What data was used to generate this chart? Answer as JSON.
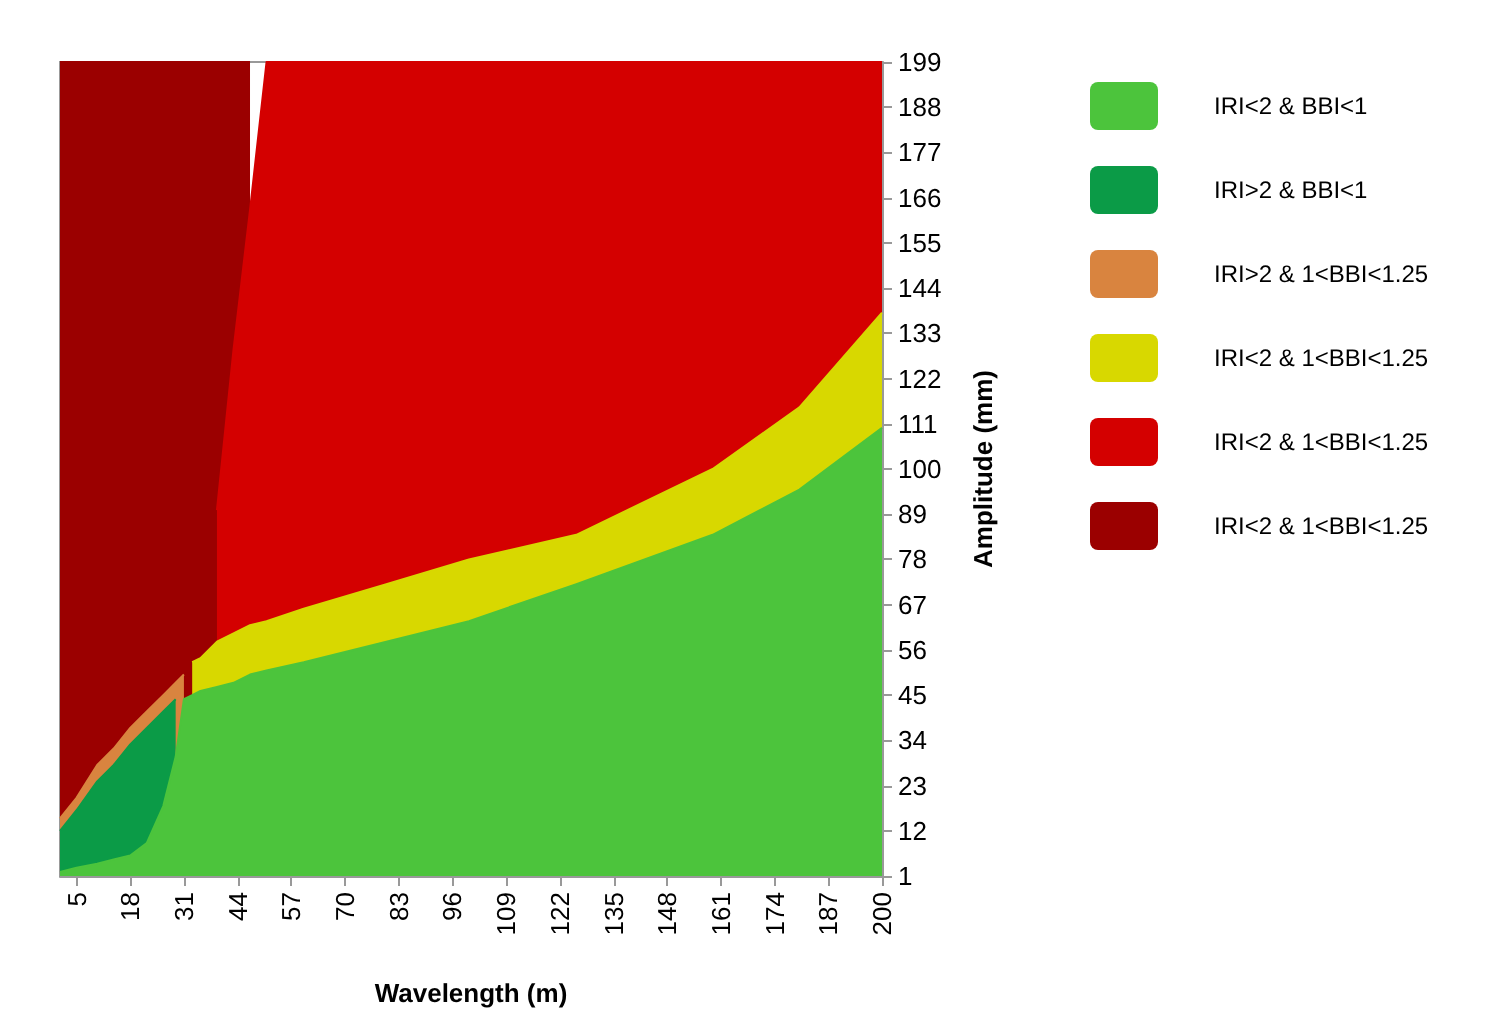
{
  "chart_data": {
    "type": "area",
    "stacked": true,
    "xlabel": "Wavelength (m)",
    "ylabel": "Amplitude (mm)",
    "x": [
      1,
      5,
      10,
      14,
      18,
      22,
      26,
      29,
      31,
      33,
      35,
      39,
      43,
      47,
      51,
      60,
      80,
      100,
      126,
      159,
      180,
      200
    ],
    "series": [
      {
        "name": "IRI<2 & BBI<1",
        "color": "#4cc43c",
        "values": [
          2,
          3,
          4,
          5,
          6,
          9,
          18,
          30,
          44,
          45,
          46,
          47,
          48,
          50,
          51,
          53,
          58,
          63,
          72,
          84,
          95,
          110
        ]
      },
      {
        "name": "IRI>2 & BBI<1",
        "color": "#0b9b47",
        "values": [
          10,
          14,
          20,
          23,
          27,
          28,
          23,
          14,
          null,
          null,
          null,
          null,
          null,
          null,
          null,
          null,
          null,
          null,
          null,
          null,
          null,
          null
        ]
      },
      {
        "name": "IRI>2 & 1<BBI<1.25",
        "color": "#d9843f",
        "values": [
          3,
          3,
          4,
          4,
          4,
          4,
          4,
          4,
          6,
          null,
          null,
          null,
          null,
          null,
          null,
          null,
          null,
          null,
          null,
          null,
          null,
          null
        ]
      },
      {
        "name": "IRI<2 & 1<BBI<1.25",
        "color": "#d8d800",
        "values": [
          null,
          null,
          null,
          null,
          null,
          null,
          null,
          null,
          null,
          8,
          8,
          11,
          12,
          12,
          12,
          13,
          14,
          15,
          12,
          16,
          20,
          28
        ]
      },
      {
        "name": "IRI<2 & 1<BBI<1.25",
        "color": "#d40000",
        "values": [
          null,
          null,
          null,
          null,
          null,
          null,
          null,
          null,
          null,
          null,
          null,
          32,
          69,
          101,
          136,
          133,
          127,
          121,
          115,
          99,
          84,
          61
        ]
      },
      {
        "name": "IRI<2 & 1<BBI<1.25",
        "color": "#9b0000",
        "values": [
          184,
          179,
          171,
          167,
          162,
          158,
          154,
          151,
          149,
          146,
          145,
          109,
          70,
          36,
          null,
          null,
          null,
          null,
          null,
          null,
          null,
          null
        ]
      }
    ],
    "xlim": [
      1,
      200
    ],
    "xticks": [
      5,
      18,
      31,
      44,
      57,
      70,
      83,
      96,
      109,
      122,
      135,
      148,
      161,
      174,
      187,
      200
    ],
    "ylim": [
      1,
      199
    ],
    "yticks": [
      1,
      12,
      23,
      34,
      45,
      56,
      67,
      78,
      89,
      100,
      111,
      122,
      133,
      144,
      155,
      166,
      177,
      188,
      199
    ],
    "grid": false,
    "legend": "right",
    "marker": "none"
  }
}
